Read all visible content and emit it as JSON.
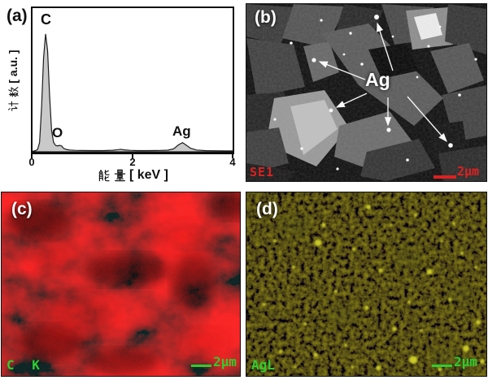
{
  "figure": {
    "background": "#ffffff",
    "layout": "2x2 panels"
  },
  "panel_a": {
    "tag": "(a)",
    "y_label_cjk": "计数",
    "y_label_latin": "[ a.u. ]",
    "x_label_cjk": "能量",
    "x_label_latin": "[ keV ]",
    "x_ticks": [
      "0",
      "2",
      "4"
    ],
    "peaks": [
      {
        "label": "C",
        "x_keV": 0.26
      },
      {
        "label": "O",
        "x_keV": 0.5
      },
      {
        "label": "Ag",
        "x_keV": 3.0
      }
    ]
  },
  "chart_data": {
    "type": "area",
    "title": "",
    "xlabel": "能量 [ keV ]",
    "ylabel": "计数 [ a.u. ]",
    "xlim": [
      0,
      4
    ],
    "ylim": [
      0,
      100
    ],
    "x_tick_labels": [
      "0",
      "2",
      "4"
    ],
    "grid": false,
    "legend": "none",
    "annotations": [
      "C peak at ~0.26 keV (max)",
      "O shoulder at ~0.5 keV",
      "Ag peak at ~3.0 keV"
    ],
    "series": [
      {
        "name": "EDS spectrum",
        "fill": "#c9c9c9",
        "stroke": "#1a1a1a",
        "points": [
          [
            0,
            0.5
          ],
          [
            0.06,
            1
          ],
          [
            0.1,
            2
          ],
          [
            0.14,
            8
          ],
          [
            0.18,
            38
          ],
          [
            0.22,
            80
          ],
          [
            0.26,
            100
          ],
          [
            0.3,
            86
          ],
          [
            0.34,
            48
          ],
          [
            0.38,
            18
          ],
          [
            0.42,
            8
          ],
          [
            0.46,
            5.5
          ],
          [
            0.5,
            5
          ],
          [
            0.54,
            5.5
          ],
          [
            0.58,
            5
          ],
          [
            0.62,
            3
          ],
          [
            0.68,
            2
          ],
          [
            0.75,
            1.5
          ],
          [
            0.85,
            1.2
          ],
          [
            1,
            1.1
          ],
          [
            1.2,
            1
          ],
          [
            1.4,
            1
          ],
          [
            1.6,
            1.3
          ],
          [
            1.7,
            1.8
          ],
          [
            1.76,
            2.1
          ],
          [
            1.82,
            1.7
          ],
          [
            1.95,
            1.2
          ],
          [
            2.1,
            1
          ],
          [
            2.3,
            1
          ],
          [
            2.5,
            1.1
          ],
          [
            2.7,
            1.4
          ],
          [
            2.82,
            2.5
          ],
          [
            2.92,
            6
          ],
          [
            3,
            7.8
          ],
          [
            3.06,
            6
          ],
          [
            3.16,
            3
          ],
          [
            3.28,
            1.5
          ],
          [
            3.45,
            1
          ],
          [
            3.65,
            0.9
          ],
          [
            3.85,
            0.8
          ],
          [
            4,
            0.8
          ]
        ]
      }
    ]
  },
  "panel_b": {
    "tag": "(b)",
    "annotation": "Ag",
    "detector_label": "SE1",
    "scale_bar_label": "2μm",
    "overlay_text_color": "#e02020",
    "arrow_color": "#ffffff"
  },
  "panel_c": {
    "tag": "(c)",
    "element_label": "C K",
    "scale_bar_label": "2μm",
    "label_color": "#2ecc2e",
    "map_base_color": "#a00505"
  },
  "panel_d": {
    "tag": "(d)",
    "element_label": "AgL",
    "scale_bar_label": "2μm",
    "label_color": "#2ecc2e",
    "dot_color": "#c9c925"
  }
}
